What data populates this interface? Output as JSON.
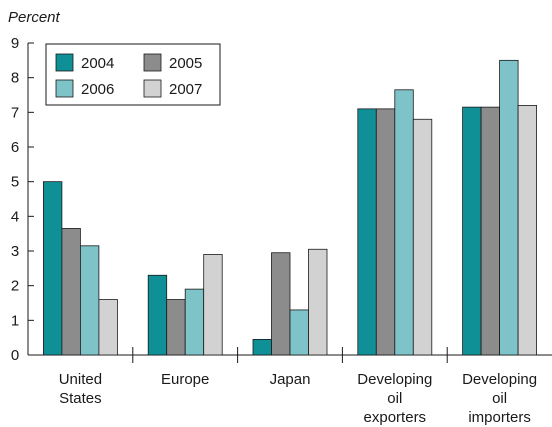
{
  "chart_data": {
    "type": "bar",
    "ylabel": "Percent",
    "ylim": [
      0,
      9
    ],
    "yticks": [
      "0",
      "1",
      "2",
      "3",
      "4",
      "5",
      "6",
      "7",
      "8",
      "9"
    ],
    "categories": [
      [
        "United",
        "States"
      ],
      [
        "Europe"
      ],
      [
        "Japan"
      ],
      [
        "Developing",
        "oil",
        "exporters"
      ],
      [
        "Developing",
        "oil",
        "importers"
      ]
    ],
    "series": [
      {
        "name": "2004",
        "color": "#0f8f96",
        "values": [
          5.0,
          2.3,
          0.45,
          7.1,
          7.15
        ]
      },
      {
        "name": "2005",
        "color": "#8c8c8c",
        "values": [
          3.65,
          1.6,
          2.95,
          7.1,
          7.15
        ]
      },
      {
        "name": "2006",
        "color": "#7ec3c8",
        "values": [
          3.15,
          1.9,
          1.3,
          7.65,
          8.5
        ]
      },
      {
        "name": "2007",
        "color": "#d2d2d2",
        "values": [
          1.6,
          2.9,
          3.05,
          6.8,
          7.2
        ]
      }
    ],
    "legend_position": "top-left",
    "grid": false
  }
}
